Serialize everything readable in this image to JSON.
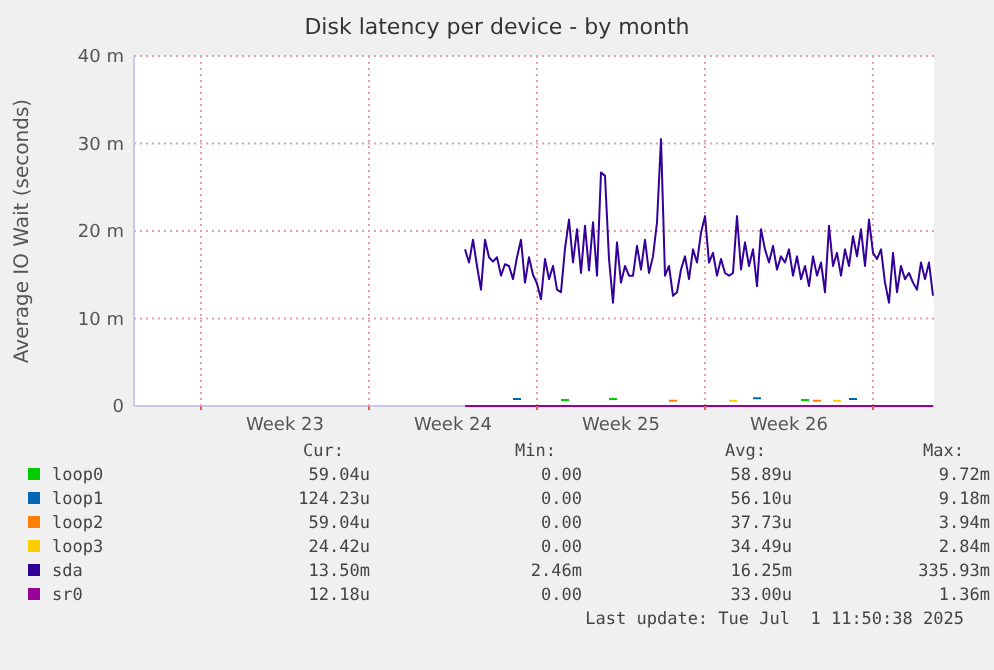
{
  "chart_data": {
    "type": "line",
    "title": "Disk latency per device - by month",
    "ylabel": "Average IO Wait (seconds)",
    "xlim": [
      "2025-05-30T05:00",
      "2025-07-02T13:00"
    ],
    "xticks": [
      {
        "value": "2025-06-02",
        "label": null
      },
      {
        "value": "2025-06-05T12:00",
        "label": "Week 23"
      },
      {
        "value": "2025-06-09",
        "label": null
      },
      {
        "value": "2025-06-12T12:00",
        "label": "Week 24"
      },
      {
        "value": "2025-06-16",
        "label": null
      },
      {
        "value": "2025-06-19T12:00",
        "label": "Week 25"
      },
      {
        "value": "2025-06-23",
        "label": null
      },
      {
        "value": "2025-06-26T12:00",
        "label": "Week 26"
      },
      {
        "value": "2025-06-30",
        "label": null
      }
    ],
    "ylim": [
      0,
      40
    ],
    "yticks": [
      0,
      {
        "value": 10,
        "label": "10 m"
      },
      {
        "value": 20,
        "label": "20 m"
      },
      {
        "value": 30,
        "label": "30 m"
      },
      {
        "value": 40,
        "label": "40 m"
      }
    ],
    "grid": true,
    "legend": "bottom",
    "marker": "none",
    "line_style": "solid",
    "series": [
      {
        "name": "loop0",
        "color": "#00cc00",
        "x": [
          "2025-06-17T00:00",
          "2025-06-17T08:00",
          "2025-06-18T00:00",
          "2025-06-19T00:00",
          "2025-06-19T08:00",
          "2025-06-20T00:00",
          "2025-06-27T00:00",
          "2025-06-27T08:00"
        ],
        "values": [
          0.7,
          0.7,
          null,
          0.8,
          0.8,
          null,
          0.7,
          0.7
        ]
      },
      {
        "name": "loop1",
        "color": "#0066b3",
        "x": [
          "2025-06-15T00:00",
          "2025-06-15T08:00",
          "2025-06-16T00:00",
          "2025-06-25T00:00",
          "2025-06-25T08:00",
          "2025-06-26T00:00",
          "2025-06-29T00:00",
          "2025-06-29T08:00"
        ],
        "values": [
          0.8,
          0.8,
          null,
          0.9,
          0.9,
          null,
          0.8,
          0.8
        ]
      },
      {
        "name": "loop2",
        "color": "#ff8000",
        "x": [
          "2025-06-21T12:00",
          "2025-06-21T20:00",
          "2025-06-22T00:00",
          "2025-06-27T12:00",
          "2025-06-27T20:00"
        ],
        "values": [
          0.6,
          0.6,
          null,
          0.6,
          0.6
        ]
      },
      {
        "name": "loop3",
        "color": "#ffcc00",
        "x": [
          "2025-06-24T00:00",
          "2025-06-24T08:00",
          "2025-06-25T00:00",
          "2025-06-28T08:00",
          "2025-06-28T16:00"
        ],
        "values": [
          0.6,
          0.6,
          null,
          0.6,
          0.6
        ]
      },
      {
        "name": "sda",
        "color": "#330099",
        "x": [
          "2025-06-13T00:00",
          "2025-06-13T04:00",
          "2025-06-13T08:00",
          "2025-06-13T12:00",
          "2025-06-13T16:00",
          "2025-06-13T20:00",
          "2025-06-14T00:00",
          "2025-06-14T04:00",
          "2025-06-14T08:00",
          "2025-06-14T12:00",
          "2025-06-14T16:00",
          "2025-06-14T20:00",
          "2025-06-15T00:00",
          "2025-06-15T04:00",
          "2025-06-15T08:00",
          "2025-06-15T12:00",
          "2025-06-15T16:00",
          "2025-06-15T20:00",
          "2025-06-16T00:00",
          "2025-06-16T04:00",
          "2025-06-16T08:00",
          "2025-06-16T12:00",
          "2025-06-16T16:00",
          "2025-06-16T20:00",
          "2025-06-17T00:00",
          "2025-06-17T04:00",
          "2025-06-17T08:00",
          "2025-06-17T12:00",
          "2025-06-17T16:00",
          "2025-06-17T20:00",
          "2025-06-18T00:00",
          "2025-06-18T04:00",
          "2025-06-18T08:00",
          "2025-06-18T12:00",
          "2025-06-18T16:00",
          "2025-06-18T20:00",
          "2025-06-19T00:00",
          "2025-06-19T04:00",
          "2025-06-19T08:00",
          "2025-06-19T12:00",
          "2025-06-19T16:00",
          "2025-06-19T20:00",
          "2025-06-20T00:00",
          "2025-06-20T04:00",
          "2025-06-20T08:00",
          "2025-06-20T12:00",
          "2025-06-20T16:00",
          "2025-06-20T20:00",
          "2025-06-21T00:00",
          "2025-06-21T04:00",
          "2025-06-21T08:00",
          "2025-06-21T12:00",
          "2025-06-21T16:00",
          "2025-06-21T20:00",
          "2025-06-22T00:00",
          "2025-06-22T04:00",
          "2025-06-22T08:00",
          "2025-06-22T12:00",
          "2025-06-22T16:00",
          "2025-06-22T20:00",
          "2025-06-23T00:00",
          "2025-06-23T04:00",
          "2025-06-23T08:00",
          "2025-06-23T12:00",
          "2025-06-23T16:00",
          "2025-06-23T20:00",
          "2025-06-24T00:00",
          "2025-06-24T04:00",
          "2025-06-24T08:00",
          "2025-06-24T12:00",
          "2025-06-24T16:00",
          "2025-06-24T20:00",
          "2025-06-25T00:00",
          "2025-06-25T04:00",
          "2025-06-25T08:00",
          "2025-06-25T12:00",
          "2025-06-25T16:00",
          "2025-06-25T20:00",
          "2025-06-26T00:00",
          "2025-06-26T04:00",
          "2025-06-26T08:00",
          "2025-06-26T12:00",
          "2025-06-26T16:00",
          "2025-06-26T20:00",
          "2025-06-27T00:00",
          "2025-06-27T04:00",
          "2025-06-27T08:00",
          "2025-06-27T12:00",
          "2025-06-27T16:00",
          "2025-06-27T20:00",
          "2025-06-28T00:00",
          "2025-06-28T04:00",
          "2025-06-28T08:00",
          "2025-06-28T12:00",
          "2025-06-28T16:00",
          "2025-06-28T20:00",
          "2025-06-29T00:00",
          "2025-06-29T04:00",
          "2025-06-29T08:00",
          "2025-06-29T12:00",
          "2025-06-29T16:00",
          "2025-06-29T20:00",
          "2025-06-30T00:00",
          "2025-06-30T04:00",
          "2025-06-30T08:00",
          "2025-06-30T12:00",
          "2025-06-30T16:00",
          "2025-06-30T20:00",
          "2025-07-01T00:00",
          "2025-07-01T04:00",
          "2025-07-01T08:00",
          "2025-07-01T12:00",
          "2025-07-01T16:00",
          "2025-07-01T20:00",
          "2025-07-02T00:00",
          "2025-07-02T04:00",
          "2025-07-02T08:00",
          "2025-07-02T12:00"
        ],
        "values": [
          17.9,
          16.4,
          19,
          16,
          13.3,
          19,
          17,
          16.5,
          17,
          14.9,
          16.2,
          16,
          14.5,
          17,
          19,
          14.1,
          17,
          15,
          14,
          12.2,
          16.8,
          14.5,
          16,
          13.3,
          13,
          18,
          21.3,
          16.4,
          20.2,
          15.2,
          20.6,
          15.5,
          21,
          14.9,
          26.7,
          26.3,
          16.8,
          11.8,
          18.7,
          14.1,
          16,
          14.9,
          14.9,
          18.3,
          15.6,
          19,
          15.2,
          17.1,
          21,
          30.5,
          14.9,
          16,
          12.6,
          13,
          15.6,
          17.1,
          14.5,
          17.9,
          16.4,
          19.8,
          21.7,
          16.4,
          17.5,
          14.9,
          16.8,
          15.2,
          14.9,
          15.2,
          21.7,
          15.6,
          18.7,
          16,
          17.9,
          13.7,
          20.2,
          17.9,
          16.4,
          18.3,
          15.6,
          17.1,
          16.4,
          17.9,
          14.9,
          17.1,
          14.5,
          16,
          13.7,
          17.1,
          14.9,
          16.4,
          13,
          20.6,
          16,
          17.5,
          14.9,
          17.9,
          16,
          19.4,
          17.1,
          20.2,
          16,
          21.3,
          17.5,
          16.8,
          17.9,
          14.1,
          11.8,
          17.5,
          13,
          16,
          14.5,
          15.2,
          14.1,
          13.3,
          16.4,
          14.5,
          16.4,
          12.6
        ]
      },
      {
        "name": "sr0",
        "color": "#990099",
        "x": [
          "2025-06-13",
          "2025-07-02T12:00"
        ],
        "values": [
          0,
          0
        ]
      }
    ],
    "annotations": [
      "Cur:",
      "Min:",
      "Avg:",
      "Max:",
      "59.04u",
      "0.00",
      "58.89u",
      "9.72m",
      "124.23u",
      "0.00",
      "56.10u",
      "9.18m",
      "59.04u",
      "0.00",
      "37.73u",
      "3.94m",
      "24.42u",
      "0.00",
      "34.49u",
      "2.84m",
      "13.50m",
      "2.46m",
      "16.25m",
      "335.93m",
      "12.18u",
      "0.00",
      "33.00u",
      "1.36m",
      "Last update: Tue Jul  1 11:50:38 2025"
    ]
  }
}
